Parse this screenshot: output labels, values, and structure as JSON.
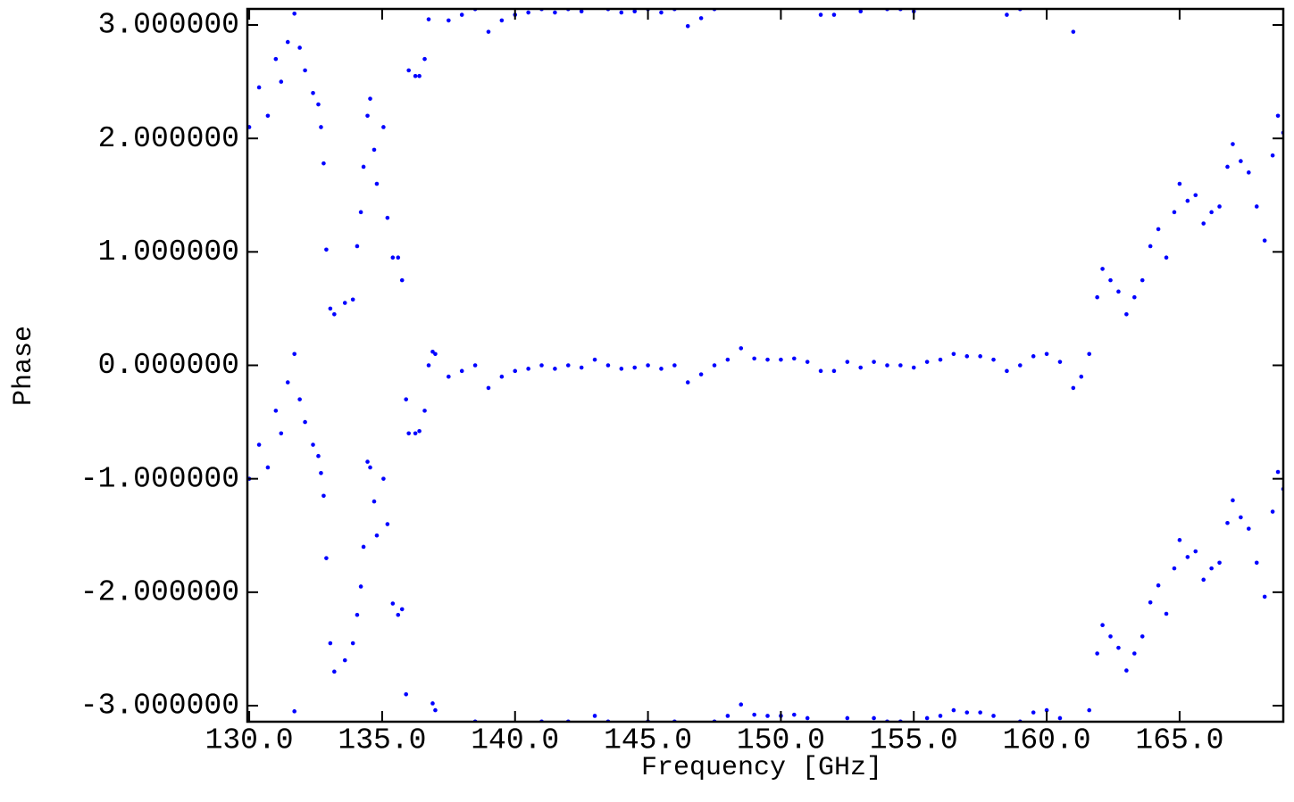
{
  "chart_data": {
    "type": "scatter",
    "xlabel": "Frequency [GHz]",
    "ylabel": "Phase",
    "xlim": [
      129.93,
      168.9
    ],
    "ylim": [
      -3.1416,
      3.1416
    ],
    "xticks": [
      {
        "value": 130,
        "label": "130.0"
      },
      {
        "value": 135,
        "label": "135.0"
      },
      {
        "value": 140,
        "label": "140.0"
      },
      {
        "value": 145,
        "label": "145.0"
      },
      {
        "value": 150,
        "label": "150.0"
      },
      {
        "value": 155,
        "label": "155.0"
      },
      {
        "value": 160,
        "label": "160.0"
      },
      {
        "value": 165,
        "label": "165.0"
      }
    ],
    "yticks": [
      {
        "value": -3,
        "label": "-3.000000"
      },
      {
        "value": -2,
        "label": "-2.000000"
      },
      {
        "value": -1,
        "label": "-1.000000"
      },
      {
        "value": 0,
        "label": "0.000000"
      },
      {
        "value": 1,
        "label": "1.000000"
      },
      {
        "value": 2,
        "label": "2.000000"
      },
      {
        "value": 3,
        "label": "3.000000"
      }
    ],
    "series": [
      {
        "color": "#0000ff",
        "x": [
          130.0,
          130.0,
          130.37,
          130.37,
          130.7,
          130.7,
          131.0,
          131.0,
          131.2,
          131.2,
          131.45,
          131.45,
          131.7,
          131.7,
          131.7,
          131.9,
          131.9,
          132.1,
          132.1,
          132.4,
          132.4,
          132.6,
          132.6,
          132.7,
          132.7,
          132.8,
          132.8,
          132.9,
          132.9,
          133.05,
          133.05,
          133.2,
          133.2,
          133.6,
          133.6,
          133.9,
          133.9,
          134.06,
          134.06,
          134.2,
          134.2,
          134.3,
          134.3,
          134.45,
          134.45,
          134.55,
          134.55,
          134.7,
          134.7,
          134.8,
          134.8,
          135.05,
          135.05,
          135.2,
          135.2,
          135.4,
          135.4,
          135.6,
          135.6,
          135.75,
          135.75,
          135.9,
          135.9,
          136.0,
          136.0,
          136.25,
          136.25,
          136.4,
          136.4,
          136.6,
          136.6,
          136.75,
          136.75,
          136.9,
          136.9
        ],
        "values": [
          2.1,
          -1.0,
          2.45,
          -0.7,
          2.2,
          -0.9,
          2.7,
          -0.4,
          2.5,
          -0.6,
          2.85,
          -0.15,
          3.1,
          0.1,
          -3.05,
          2.8,
          -0.3,
          2.6,
          -0.5,
          2.4,
          -0.7,
          2.3,
          -0.8,
          2.1,
          -0.95,
          1.78,
          -1.15,
          1.02,
          -1.7,
          0.5,
          -2.45,
          0.45,
          -2.7,
          0.55,
          -2.6,
          0.58,
          -2.45,
          1.05,
          -2.2,
          1.35,
          -1.95,
          1.75,
          -1.6,
          2.2,
          -0.85,
          2.35,
          -0.9,
          1.9,
          -1.2,
          1.6,
          -1.5,
          2.1,
          -1.0,
          1.3,
          -1.4,
          0.95,
          -2.1,
          0.95,
          -2.2,
          0.75,
          -2.15,
          -0.3,
          -2.9,
          -0.6,
          2.6,
          -0.6,
          2.55,
          -0.58,
          2.55,
          -0.4,
          2.7,
          0.0,
          3.05,
          0.12,
          -2.98
        ]
      },
      {
        "color": "#0000ff",
        "x": [
          137.0,
          137.5,
          138.0,
          138.5,
          139.0,
          139.5,
          140.0,
          140.5,
          141.0,
          141.5,
          142.0,
          142.5,
          143.0,
          143.5,
          144.0,
          144.5,
          145.0,
          145.5,
          146.0,
          146.5,
          147.0,
          147.5,
          148.0,
          148.5,
          149.0,
          149.5,
          150.0,
          150.5,
          151.0,
          151.5,
          152.0,
          152.5,
          153.0,
          153.5,
          154.0,
          154.5,
          155.0,
          155.5,
          156.0,
          156.5,
          157.0,
          157.5,
          158.0,
          158.5,
          159.0,
          159.5,
          160.0,
          160.5,
          161.0
        ],
        "values": [
          0.1,
          -0.1,
          -0.05,
          0.0,
          -0.2,
          -0.1,
          -0.05,
          -0.03,
          0.0,
          -0.03,
          0.0,
          -0.02,
          0.05,
          0.0,
          -0.03,
          -0.02,
          0.0,
          -0.03,
          0.0,
          -0.15,
          -0.08,
          0.0,
          0.05,
          0.15,
          0.06,
          0.05,
          0.05,
          0.06,
          0.03,
          -0.05,
          -0.05,
          0.03,
          -0.02,
          0.03,
          0.0,
          0.0,
          -0.02,
          0.03,
          0.05,
          0.1,
          0.08,
          0.08,
          0.05,
          -0.05,
          0.0,
          0.08,
          0.1,
          0.03,
          -0.2
        ]
      },
      {
        "color": "#0000ff",
        "x": [
          137.0,
          137.5,
          138.0,
          138.5,
          139.0,
          139.5,
          140.0,
          140.5,
          141.0,
          141.5,
          142.0,
          142.5,
          143.0,
          143.5,
          144.0,
          144.5,
          145.0,
          145.5,
          146.0,
          146.5,
          147.0,
          147.5,
          148.0,
          148.5,
          149.0,
          149.5,
          150.0,
          150.5,
          151.0,
          151.5,
          152.0,
          152.5,
          153.0,
          153.5,
          154.0,
          154.5,
          155.0,
          155.5,
          156.0,
          156.5,
          157.0,
          157.5,
          158.0,
          158.5,
          159.0,
          159.5,
          160.0,
          160.5,
          161.0
        ],
        "values": [
          3.24,
          3.04,
          3.09,
          3.14,
          2.94,
          3.04,
          3.09,
          3.11,
          3.14,
          3.11,
          3.14,
          3.12,
          3.19,
          3.14,
          3.11,
          3.12,
          3.14,
          3.11,
          3.14,
          2.99,
          3.06,
          3.14,
          3.19,
          3.29,
          3.2,
          3.19,
          3.19,
          3.2,
          3.17,
          3.09,
          3.09,
          3.17,
          3.12,
          3.17,
          3.14,
          3.14,
          3.12,
          3.17,
          3.19,
          3.24,
          3.22,
          3.22,
          3.19,
          3.09,
          3.14,
          3.22,
          3.24,
          3.17,
          2.94
        ]
      },
      {
        "color": "#0000ff",
        "x": [
          137.0,
          137.5,
          138.0,
          138.5,
          139.0,
          139.5,
          140.0,
          140.5,
          141.0,
          141.5,
          142.0,
          142.5,
          143.0,
          143.5,
          144.0,
          144.5,
          145.0,
          145.5,
          146.0,
          146.5,
          147.0,
          147.5,
          148.0,
          148.5,
          149.0,
          149.5,
          150.0,
          150.5,
          151.0,
          151.5,
          152.0,
          152.5,
          153.0,
          153.5,
          154.0,
          154.5,
          155.0,
          155.5,
          156.0,
          156.5,
          157.0,
          157.5,
          158.0,
          158.5,
          159.0,
          159.5,
          160.0,
          160.5,
          161.0
        ],
        "values": [
          -3.04,
          -3.24,
          -3.19,
          -3.14,
          -3.34,
          -3.24,
          -3.19,
          -3.17,
          -3.14,
          -3.17,
          -3.14,
          -3.16,
          -3.09,
          -3.14,
          -3.17,
          -3.16,
          -3.14,
          -3.17,
          -3.14,
          -3.29,
          -3.22,
          -3.14,
          -3.09,
          -2.99,
          -3.08,
          -3.09,
          -3.09,
          -3.08,
          -3.11,
          -3.19,
          -3.19,
          -3.11,
          -3.16,
          -3.11,
          -3.14,
          -3.14,
          -3.16,
          -3.11,
          -3.09,
          -3.04,
          -3.06,
          -3.06,
          -3.09,
          -3.19,
          -3.14,
          -3.06,
          -3.04,
          -3.11,
          -3.34
        ]
      },
      {
        "color": "#0000ff",
        "x": [
          161.3,
          161.6,
          161.9,
          162.1,
          162.4,
          162.7,
          163.0,
          163.3,
          163.6,
          163.9,
          164.2,
          164.5,
          164.8,
          165.0,
          165.3,
          165.6,
          165.9,
          166.2,
          166.5,
          166.8,
          167.0,
          167.3,
          167.6,
          167.9,
          168.2,
          168.5,
          168.7,
          168.9
        ],
        "values": [
          -0.1,
          0.1,
          0.6,
          0.85,
          0.75,
          0.65,
          0.45,
          0.6,
          0.75,
          1.05,
          1.2,
          0.95,
          1.35,
          1.6,
          1.45,
          1.5,
          1.25,
          1.35,
          1.4,
          1.75,
          1.95,
          1.8,
          1.7,
          1.4,
          1.1,
          1.85,
          2.2,
          2.05
        ]
      },
      {
        "color": "#0000ff",
        "x": [
          161.3,
          161.6,
          161.9,
          162.1,
          162.4,
          162.7,
          163.0,
          163.3,
          163.6,
          163.9,
          164.2,
          164.5,
          164.8,
          165.0,
          165.3,
          165.6,
          165.9,
          166.2,
          166.5,
          166.8,
          167.0,
          167.3,
          167.6,
          167.9,
          168.2,
          168.5,
          168.7,
          168.9
        ],
        "values": [
          -3.24,
          -3.04,
          -2.54,
          -2.29,
          -2.39,
          -2.49,
          -2.69,
          -2.54,
          -2.39,
          -2.09,
          -1.94,
          -2.19,
          -1.79,
          -1.54,
          -1.69,
          -1.64,
          -1.89,
          -1.79,
          -1.74,
          -1.39,
          -1.19,
          -1.34,
          -1.44,
          -1.74,
          -2.04,
          -1.29,
          -0.94,
          -1.09
        ]
      }
    ]
  }
}
